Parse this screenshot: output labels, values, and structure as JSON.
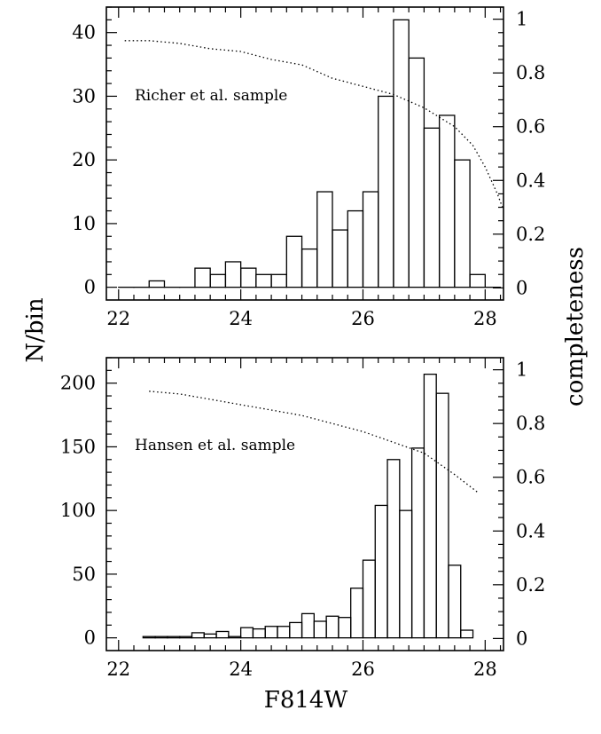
{
  "figure": {
    "xlabel": "F814W",
    "ylabel": "N/bin",
    "y2label": "completeness"
  },
  "chart_data": [
    {
      "type": "bar",
      "panel": "top",
      "annotation": "Richer et al. sample",
      "xlim": [
        21.8,
        28.3
      ],
      "ylim": [
        -2,
        44
      ],
      "y2lim": [
        -0.045,
        1.045
      ],
      "xticks": [
        22,
        24,
        26,
        28
      ],
      "yticks": [
        0,
        10,
        20,
        30,
        40
      ],
      "y2ticks": [
        0,
        0.2,
        0.4,
        0.6,
        0.8,
        1
      ],
      "bin_width": 0.25,
      "bin_start": 22.0,
      "counts": [
        0,
        0,
        1,
        0,
        0,
        3,
        2,
        4,
        3,
        2,
        2,
        8,
        6,
        15,
        9,
        12,
        15,
        30,
        42,
        36,
        25,
        27,
        20,
        2,
        0
      ],
      "completeness_x": [
        22.1,
        22.5,
        23.0,
        23.5,
        24.0,
        24.5,
        25.0,
        25.5,
        26.0,
        26.5,
        27.0,
        27.5,
        27.8,
        28.0,
        28.2,
        28.3
      ],
      "completeness_y": [
        0.92,
        0.92,
        0.91,
        0.89,
        0.88,
        0.85,
        0.83,
        0.78,
        0.75,
        0.72,
        0.67,
        0.6,
        0.53,
        0.45,
        0.35,
        0.29
      ]
    },
    {
      "type": "bar",
      "panel": "bottom",
      "annotation": "Hansen et al. sample",
      "xlim": [
        21.8,
        28.3
      ],
      "ylim": [
        -10,
        220
      ],
      "y2lim": [
        -0.045,
        1.045
      ],
      "xticks": [
        22,
        24,
        26,
        28
      ],
      "yticks": [
        0,
        50,
        100,
        150,
        200
      ],
      "y2ticks": [
        0,
        0.2,
        0.4,
        0.6,
        0.8,
        1
      ],
      "bin_width": 0.2,
      "bin_start": 22.4,
      "counts": [
        1,
        1,
        1,
        1,
        4,
        3,
        5,
        1,
        8,
        7,
        9,
        9,
        12,
        19,
        13,
        17,
        16,
        39,
        61,
        104,
        140,
        100,
        149,
        207,
        192,
        57,
        6
      ],
      "completeness_x": [
        22.5,
        23.0,
        23.5,
        24.0,
        24.5,
        25.0,
        25.5,
        26.0,
        26.5,
        27.0,
        27.5,
        27.9
      ],
      "completeness_y": [
        0.92,
        0.91,
        0.89,
        0.87,
        0.85,
        0.83,
        0.8,
        0.77,
        0.73,
        0.69,
        0.61,
        0.54
      ]
    }
  ]
}
